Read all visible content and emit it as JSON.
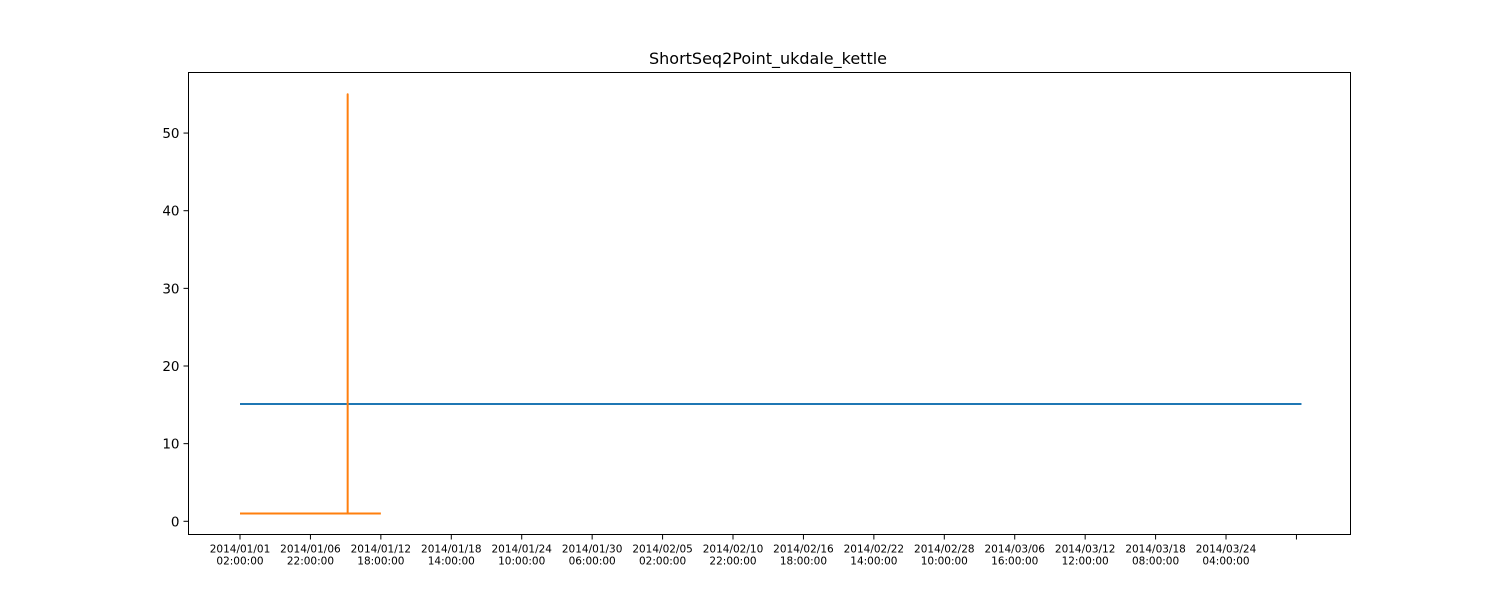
{
  "chart_data": {
    "type": "line",
    "title": "ShortSeq2Point_ukdale_kettle",
    "xlabel": "",
    "ylabel": "",
    "x_ticks": [
      [
        "2014/01/01",
        "02:00:00"
      ],
      [
        "2014/01/06",
        "22:00:00"
      ],
      [
        "2014/01/12",
        "18:00:00"
      ],
      [
        "2014/01/18",
        "14:00:00"
      ],
      [
        "2014/01/24",
        "10:00:00"
      ],
      [
        "2014/01/30",
        "06:00:00"
      ],
      [
        "2014/02/05",
        "02:00:00"
      ],
      [
        "2014/02/10",
        "22:00:00"
      ],
      [
        "2014/02/16",
        "18:00:00"
      ],
      [
        "2014/02/22",
        "14:00:00"
      ],
      [
        "2014/02/28",
        "10:00:00"
      ],
      [
        "2014/03/06",
        "16:00:00"
      ],
      [
        "2014/03/12",
        "12:00:00"
      ],
      [
        "2014/03/18",
        "08:00:00"
      ],
      [
        "2014/03/24",
        "04:00:00"
      ],
      [
        "",
        ""
      ]
    ],
    "y_ticks": [
      0,
      10,
      20,
      30,
      40,
      50
    ],
    "ylim": [
      -1.7,
      57.8
    ],
    "grid": false,
    "series": [
      {
        "color": "#1f77b4",
        "points": [
          [
            "2014/01/01 02:00:00",
            15.1
          ],
          [
            "2014/03/30 00:00:00",
            15.1
          ]
        ]
      },
      {
        "color": "#ff7f0e",
        "points": [
          [
            "2014/01/01 02:00:00",
            1.0
          ],
          [
            "2014/01/10 00:00:00",
            1.0
          ],
          [
            "2014/01/10 00:00:00",
            55.0
          ],
          [
            "2014/01/10 00:00:00",
            1.0
          ],
          [
            "2014/01/12 18:00:00",
            1.0
          ]
        ]
      }
    ]
  }
}
